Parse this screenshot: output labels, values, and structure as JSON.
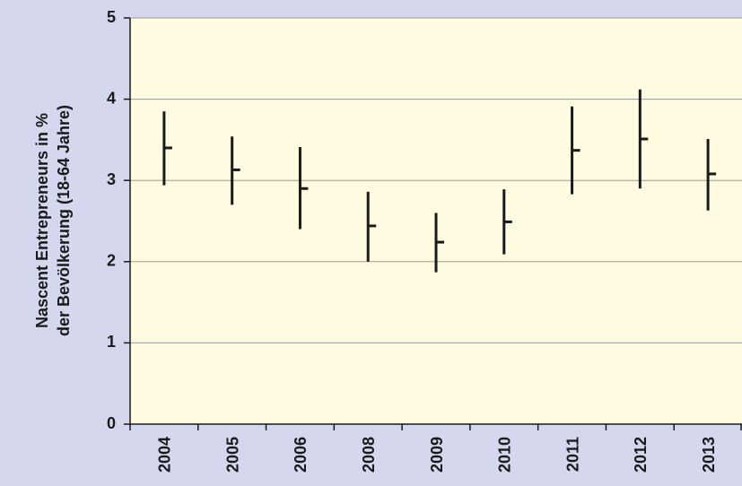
{
  "chart_data": {
    "type": "errorbar",
    "ylabel": [
      "Nascent Entrepreneurs in %",
      "der Bevölkerung (18-64 Jahre)"
    ],
    "categories": [
      "2004",
      "2005",
      "2006",
      "2008",
      "2009",
      "2010",
      "2011",
      "2012",
      "2013"
    ],
    "values": [
      3.4,
      3.13,
      2.9,
      2.44,
      2.24,
      2.49,
      3.37,
      3.51,
      3.08
    ],
    "low": [
      2.94,
      2.7,
      2.4,
      2.0,
      1.87,
      2.09,
      2.83,
      2.9,
      2.63
    ],
    "high": [
      3.85,
      3.54,
      3.41,
      2.86,
      2.6,
      2.89,
      3.91,
      4.12,
      3.51
    ],
    "color": "#1a1a1a",
    "ylim": [
      0,
      5
    ],
    "yticks": [
      0,
      1,
      2,
      3,
      4,
      5
    ],
    "grid": true
  }
}
